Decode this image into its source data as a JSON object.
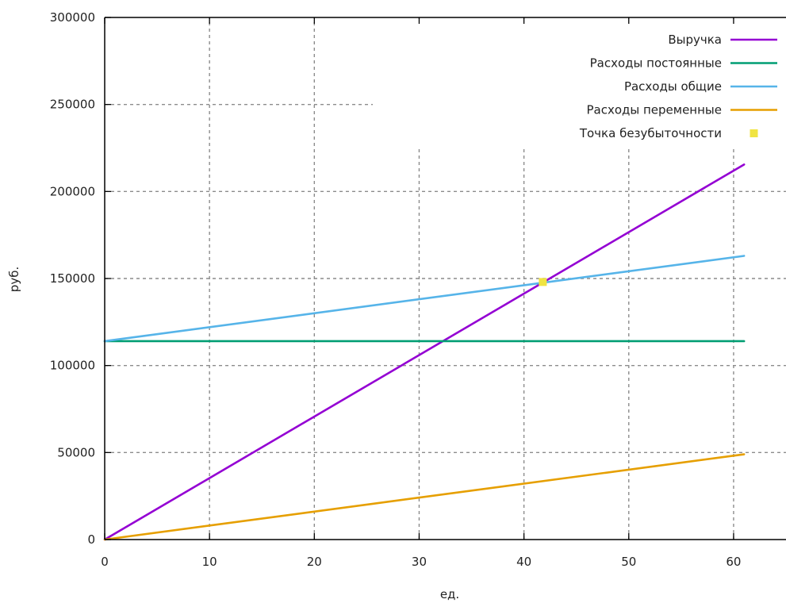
{
  "chart_data": {
    "type": "line",
    "title": "",
    "xlabel": "ед.",
    "ylabel": "руб.",
    "xlim": [
      0,
      65
    ],
    "ylim": [
      0,
      300000
    ],
    "xticks": [
      0,
      10,
      20,
      30,
      40,
      50,
      60
    ],
    "yticks": [
      0,
      50000,
      100000,
      150000,
      200000,
      250000,
      300000
    ],
    "grid": true,
    "legend_position": "top-right",
    "series": [
      {
        "name": "Выручка",
        "color": "#9400d3",
        "x": [
          0,
          61
        ],
        "y": [
          0,
          215500
        ],
        "style": "line"
      },
      {
        "name": "Расходы постоянные",
        "color": "#009e73",
        "x": [
          0,
          61
        ],
        "y": [
          114000,
          114000
        ],
        "style": "line"
      },
      {
        "name": "Расходы общие",
        "color": "#56b4e9",
        "x": [
          0,
          61
        ],
        "y": [
          114000,
          163000
        ],
        "style": "line"
      },
      {
        "name": "Расходы переменные",
        "color": "#e69f00",
        "x": [
          0,
          61
        ],
        "y": [
          0,
          49000
        ],
        "style": "line"
      },
      {
        "name": "Точка безубыточности",
        "color": "#f0e442",
        "x": [
          41.8
        ],
        "y": [
          148000
        ],
        "style": "point"
      }
    ]
  }
}
